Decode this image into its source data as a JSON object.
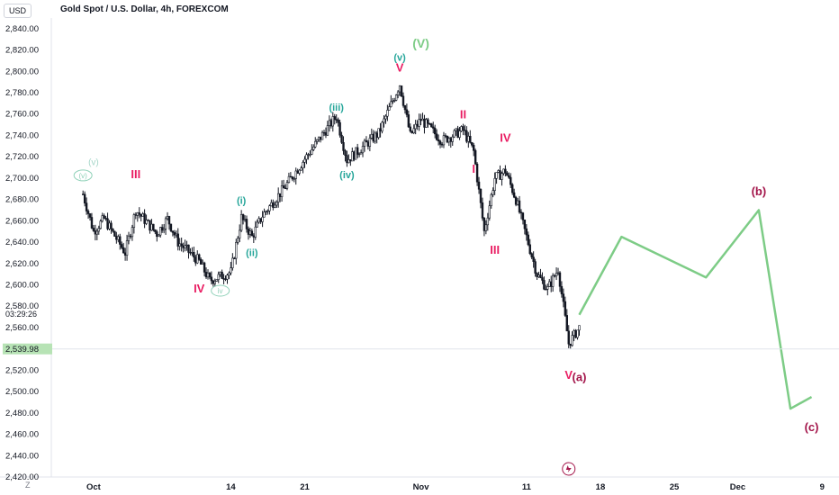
{
  "header": {
    "currency": "USD",
    "title": "Gold Spot / U.S. Dollar, 4h, FOREXCOM"
  },
  "bottom": {
    "zoom_label": "Z"
  },
  "price_axis": {
    "last_price": "2,539.98",
    "countdown": "03:29:26"
  },
  "colors": {
    "up": "#131722",
    "down": "#131722",
    "wave_green": "#26a69a",
    "wave_red": "#e91e63",
    "wave_maroon": "#a3154a",
    "projection": "#7dcc86",
    "last_price_bg": "#b7e3b5"
  },
  "chart_data": {
    "type": "candlestick",
    "title": "Gold Spot / U.S. Dollar, 4h, FOREXCOM",
    "ylim": [
      2420,
      2850
    ],
    "y_ticks": [
      "2,840.00",
      "2,820.00",
      "2,800.00",
      "2,780.00",
      "2,760.00",
      "2,740.00",
      "2,720.00",
      "2,700.00",
      "2,680.00",
      "2,660.00",
      "2,640.00",
      "2,620.00",
      "2,600.00",
      "2,580.00",
      "2,560.00",
      "2,520.00",
      "2,500.00",
      "2,480.00",
      "2,460.00",
      "2,440.00",
      "2,420.00"
    ],
    "x_ticks": [
      {
        "label": "Oct",
        "date": "2024-10-01"
      },
      {
        "label": "14",
        "date": "2024-10-14"
      },
      {
        "label": "21",
        "date": "2024-10-21"
      },
      {
        "label": "Nov",
        "date": "2024-11-01"
      },
      {
        "label": "11",
        "date": "2024-11-11"
      },
      {
        "label": "18",
        "date": "2024-11-18"
      },
      {
        "label": "25",
        "date": "2024-11-25"
      },
      {
        "label": "Dec",
        "date": "2024-12-01"
      },
      {
        "label": "9",
        "date": "2024-12-09"
      }
    ],
    "price_path": [
      [
        "2024-09-30",
        2685
      ],
      [
        "2024-10-01",
        2650
      ],
      [
        "2024-10-02",
        2662
      ],
      [
        "2024-10-04",
        2630
      ],
      [
        "2024-10-05",
        2670
      ],
      [
        "2024-10-07",
        2648
      ],
      [
        "2024-10-08",
        2662
      ],
      [
        "2024-10-09",
        2640
      ],
      [
        "2024-10-11",
        2622
      ],
      [
        "2024-10-12",
        2604
      ],
      [
        "2024-10-14",
        2612
      ],
      [
        "2024-10-15",
        2663
      ],
      [
        "2024-10-16",
        2645
      ],
      [
        "2024-10-17",
        2665
      ],
      [
        "2024-10-19",
        2690
      ],
      [
        "2024-10-21",
        2718
      ],
      [
        "2024-10-23",
        2745
      ],
      [
        "2024-10-24",
        2758
      ],
      [
        "2024-10-25",
        2717
      ],
      [
        "2024-10-26",
        2725
      ],
      [
        "2024-10-28",
        2742
      ],
      [
        "2024-10-29",
        2765
      ],
      [
        "2024-10-30",
        2788
      ],
      [
        "2024-10-31",
        2740
      ],
      [
        "2024-11-01",
        2755
      ],
      [
        "2024-11-03",
        2735
      ],
      [
        "2024-11-05",
        2745
      ],
      [
        "2024-11-06",
        2725
      ],
      [
        "2024-11-07",
        2650
      ],
      [
        "2024-11-08",
        2700
      ],
      [
        "2024-11-09",
        2707
      ],
      [
        "2024-11-10",
        2680
      ],
      [
        "2024-11-12",
        2610
      ],
      [
        "2024-11-13",
        2596
      ],
      [
        "2024-11-14",
        2615
      ],
      [
        "2024-11-15",
        2545
      ],
      [
        "2024-11-16",
        2560
      ]
    ],
    "projection": [
      [
        "2024-11-16",
        2572
      ],
      [
        "2024-11-20",
        2645
      ],
      [
        "2024-11-28",
        2607
      ],
      [
        "2024-12-03",
        2670
      ],
      [
        "2024-12-06",
        2484
      ],
      [
        "2024-12-08",
        2495
      ]
    ],
    "wave_labels": [
      {
        "text": "(v)",
        "date": "2024-09-30",
        "price": 2700,
        "style": "circle-green"
      },
      {
        "text": "(v)",
        "date": "2024-10-01",
        "price": 2712,
        "style": "faded-green"
      },
      {
        "text": "III",
        "date": "2024-10-05",
        "price": 2700,
        "style": "red"
      },
      {
        "text": "IV",
        "date": "2024-10-11",
        "price": 2593,
        "style": "red"
      },
      {
        "text": "iv",
        "date": "2024-10-13",
        "price": 2592,
        "style": "circle-green"
      },
      {
        "text": "(i)",
        "date": "2024-10-15",
        "price": 2676,
        "style": "green"
      },
      {
        "text": "(ii)",
        "date": "2024-10-16",
        "price": 2627,
        "style": "green"
      },
      {
        "text": "(iii)",
        "date": "2024-10-24",
        "price": 2763,
        "style": "green"
      },
      {
        "text": "(iv)",
        "date": "2024-10-25",
        "price": 2700,
        "style": "green"
      },
      {
        "text": "(v)",
        "date": "2024-10-30",
        "price": 2810,
        "style": "green"
      },
      {
        "text": "V",
        "date": "2024-10-30",
        "price": 2800,
        "style": "red"
      },
      {
        "text": "(V)",
        "date": "2024-11-01",
        "price": 2822,
        "style": "lightgreen"
      },
      {
        "text": "II",
        "date": "2024-11-05",
        "price": 2756,
        "style": "red"
      },
      {
        "text": "I",
        "date": "2024-11-06",
        "price": 2705,
        "style": "red"
      },
      {
        "text": "IV",
        "date": "2024-11-09",
        "price": 2734,
        "style": "red"
      },
      {
        "text": "III",
        "date": "2024-11-08",
        "price": 2629,
        "style": "red"
      },
      {
        "text": "V",
        "date": "2024-11-15",
        "price": 2512,
        "style": "red"
      },
      {
        "text": "(a)",
        "date": "2024-11-16",
        "price": 2510,
        "style": "maroon"
      },
      {
        "text": "(b)",
        "date": "2024-12-03",
        "price": 2684,
        "style": "maroon"
      },
      {
        "text": "(c)",
        "date": "2024-12-08",
        "price": 2463,
        "style": "maroon"
      }
    ]
  }
}
